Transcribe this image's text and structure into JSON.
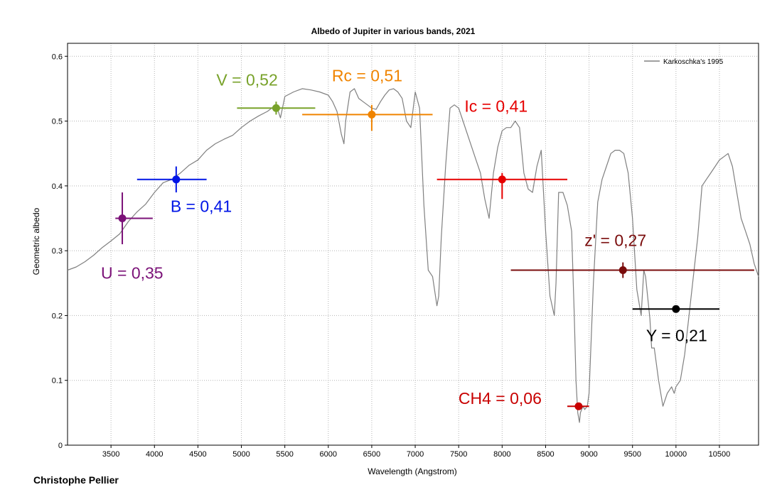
{
  "credit": "Christophe Pellier",
  "chart_data": {
    "type": "line",
    "title": "Albedo of Jupiter in various bands, 2021",
    "xlabel": "Wavelength (Angstrom)",
    "ylabel": "Geometric albedo",
    "xlim": [
      3000,
      10950
    ],
    "ylim": [
      0,
      0.62
    ],
    "x_ticks": [
      3500,
      4000,
      4500,
      5000,
      5500,
      6000,
      6500,
      7000,
      7500,
      8000,
      8500,
      9000,
      9500,
      10000,
      10500
    ],
    "y_ticks": [
      0,
      0.1,
      0.2,
      0.3,
      0.4,
      0.5,
      0.6
    ],
    "y_tick_labels": [
      "0",
      "0.1",
      "0.2",
      "0.3",
      "0.4",
      "0.5",
      "0.6"
    ],
    "grid": true,
    "legend": {
      "position": "top-right",
      "entries": [
        "Karkoschka's 1995"
      ]
    },
    "series": [
      {
        "name": "Karkoschka's 1995",
        "color": "#808080",
        "x": [
          3000,
          3100,
          3200,
          3300,
          3400,
          3500,
          3600,
          3700,
          3800,
          3900,
          4000,
          4100,
          4200,
          4300,
          4400,
          4500,
          4600,
          4700,
          4800,
          4900,
          5000,
          5100,
          5200,
          5300,
          5400,
          5450,
          5500,
          5600,
          5700,
          5800,
          5900,
          6000,
          6050,
          6100,
          6150,
          6180,
          6200,
          6250,
          6300,
          6350,
          6400,
          6450,
          6500,
          6550,
          6600,
          6650,
          6700,
          6750,
          6800,
          6850,
          6900,
          6950,
          7000,
          7050,
          7100,
          7150,
          7200,
          7250,
          7270,
          7300,
          7350,
          7400,
          7450,
          7500,
          7550,
          7600,
          7650,
          7700,
          7750,
          7800,
          7850,
          7900,
          7950,
          8000,
          8050,
          8100,
          8150,
          8200,
          8250,
          8300,
          8350,
          8400,
          8450,
          8500,
          8550,
          8600,
          8620,
          8650,
          8700,
          8750,
          8800,
          8830,
          8850,
          8870,
          8890,
          8900,
          8930,
          8950,
          8980,
          9000,
          9050,
          9100,
          9150,
          9200,
          9250,
          9300,
          9350,
          9400,
          9450,
          9500,
          9550,
          9600,
          9630,
          9650,
          9700,
          9720,
          9750,
          9800,
          9850,
          9900,
          9950,
          9980,
          10000,
          10050,
          10100,
          10150,
          10200,
          10250,
          10300,
          10350,
          10400,
          10450,
          10500,
          10550,
          10600,
          10650,
          10700,
          10750,
          10800,
          10850,
          10900,
          10950
        ],
        "y": [
          0.27,
          0.275,
          0.283,
          0.293,
          0.305,
          0.315,
          0.326,
          0.345,
          0.36,
          0.372,
          0.39,
          0.405,
          0.41,
          0.42,
          0.432,
          0.44,
          0.455,
          0.465,
          0.472,
          0.478,
          0.49,
          0.5,
          0.508,
          0.515,
          0.525,
          0.505,
          0.538,
          0.545,
          0.55,
          0.548,
          0.545,
          0.54,
          0.53,
          0.515,
          0.48,
          0.465,
          0.5,
          0.545,
          0.55,
          0.535,
          0.53,
          0.525,
          0.52,
          0.518,
          0.53,
          0.54,
          0.548,
          0.55,
          0.545,
          0.535,
          0.5,
          0.49,
          0.545,
          0.52,
          0.37,
          0.27,
          0.26,
          0.215,
          0.23,
          0.32,
          0.43,
          0.52,
          0.525,
          0.52,
          0.5,
          0.48,
          0.46,
          0.44,
          0.42,
          0.38,
          0.35,
          0.42,
          0.46,
          0.485,
          0.49,
          0.49,
          0.5,
          0.49,
          0.42,
          0.395,
          0.39,
          0.43,
          0.455,
          0.33,
          0.23,
          0.2,
          0.25,
          0.39,
          0.39,
          0.37,
          0.33,
          0.2,
          0.1,
          0.05,
          0.035,
          0.05,
          0.06,
          0.055,
          0.06,
          0.08,
          0.25,
          0.375,
          0.41,
          0.43,
          0.45,
          0.455,
          0.455,
          0.45,
          0.42,
          0.35,
          0.24,
          0.2,
          0.27,
          0.26,
          0.195,
          0.15,
          0.15,
          0.1,
          0.06,
          0.08,
          0.09,
          0.08,
          0.09,
          0.1,
          0.14,
          0.2,
          0.26,
          0.32,
          0.4,
          0.41,
          0.42,
          0.43,
          0.44,
          0.445,
          0.45,
          0.43,
          0.39,
          0.35,
          0.33,
          0.31,
          0.28,
          0.26
        ]
      }
    ],
    "bands": [
      {
        "name": "U",
        "label": "U = 0,35",
        "x": 3630,
        "y": 0.35,
        "color": "#7b1278",
        "xerr": [
          3550,
          3980
        ],
        "yerr": [
          0.31,
          0.39
        ]
      },
      {
        "name": "B",
        "label": "B = 0,41",
        "x": 4250,
        "y": 0.41,
        "color": "#0015e6",
        "xerr": [
          3800,
          4600
        ],
        "yerr": [
          0.39,
          0.43
        ]
      },
      {
        "name": "V",
        "label": "V = 0,52",
        "x": 5400,
        "y": 0.52,
        "color": "#78a22a",
        "xerr": [
          4950,
          5850
        ],
        "yerr": [
          0.51,
          0.53
        ]
      },
      {
        "name": "Rc",
        "label": "Rc = 0,51",
        "x": 6500,
        "y": 0.51,
        "color": "#f08400",
        "xerr": [
          5700,
          7200
        ],
        "yerr": [
          0.485,
          0.525
        ]
      },
      {
        "name": "Ic",
        "label": "Ic = 0,41",
        "x": 8000,
        "y": 0.41,
        "color": "#e60000",
        "xerr": [
          7250,
          8750
        ],
        "yerr": [
          0.38,
          0.42
        ]
      },
      {
        "name": "z'",
        "label": "z' = 0,27",
        "x": 9390,
        "y": 0.27,
        "color": "#7a0c0c",
        "xerr": [
          8100,
          10900
        ],
        "yerr": [
          0.258,
          0.282
        ]
      },
      {
        "name": "Y",
        "label": "Y = 0,21",
        "x": 10000,
        "y": 0.21,
        "color": "#000000",
        "xerr": [
          9500,
          10500
        ],
        "yerr": [
          0.205,
          0.215
        ]
      },
      {
        "name": "CH4",
        "label": "CH4 = 0,06",
        "x": 8880,
        "y": 0.06,
        "color": "#c80000",
        "xerr": [
          8750,
          9000
        ],
        "yerr": [
          0.055,
          0.065
        ]
      }
    ]
  }
}
